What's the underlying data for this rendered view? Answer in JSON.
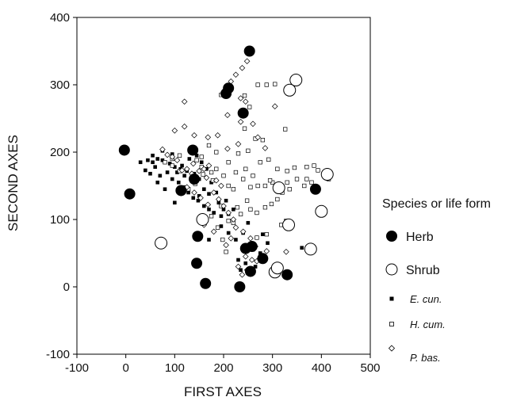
{
  "chart_data": {
    "type": "scatter",
    "title": "",
    "xlabel": "FIRST AXES",
    "ylabel": "SECOND AXES",
    "xlim": [
      -100,
      500
    ],
    "ylim": [
      -100,
      400
    ],
    "xticks": [
      "-100",
      "0",
      "100",
      "200",
      "300",
      "400",
      "500"
    ],
    "yticks": [
      "-100",
      "0",
      "100",
      "200",
      "300",
      "400"
    ],
    "xtick_values": [
      -100,
      0,
      100,
      200,
      300,
      400,
      500
    ],
    "ytick_values": [
      -100,
      0,
      100,
      200,
      300,
      400
    ],
    "grid": false,
    "legend_position": "right",
    "legend_title": "Species or life form",
    "series": [
      {
        "name": "Herb",
        "marker": "filled-circle-large",
        "points": [
          [
            253,
            350
          ],
          [
            210,
            295
          ],
          [
            205,
            287
          ],
          [
            240,
            258
          ],
          [
            -3,
            203
          ],
          [
            137,
            203
          ],
          [
            8,
            138
          ],
          [
            113,
            143
          ],
          [
            388,
            145
          ],
          [
            140,
            160
          ],
          [
            147,
            75
          ],
          [
            145,
            35
          ],
          [
            163,
            5
          ],
          [
            233,
            0
          ],
          [
            245,
            57
          ],
          [
            258,
            60
          ],
          [
            280,
            42
          ],
          [
            255,
            23
          ],
          [
            330,
            18
          ]
        ]
      },
      {
        "name": "Shrub",
        "marker": "open-circle-large",
        "points": [
          [
            348,
            307
          ],
          [
            335,
            292
          ],
          [
            313,
            147
          ],
          [
            412,
            167
          ],
          [
            157,
            100
          ],
          [
            72,
            65
          ],
          [
            333,
            92
          ],
          [
            400,
            112
          ],
          [
            378,
            56
          ],
          [
            305,
            22
          ],
          [
            310,
            28
          ]
        ]
      },
      {
        "name": "E. cun.",
        "marker": "filled-square-small",
        "points": [
          [
            30,
            185
          ],
          [
            45,
            188
          ],
          [
            55,
            185
          ],
          [
            65,
            190
          ],
          [
            75,
            188
          ],
          [
            90,
            183
          ],
          [
            100,
            178
          ],
          [
            105,
            170
          ],
          [
            112,
            175
          ],
          [
            120,
            165
          ],
          [
            125,
            172
          ],
          [
            135,
            158
          ],
          [
            140,
            168
          ],
          [
            150,
            160
          ],
          [
            40,
            173
          ],
          [
            50,
            168
          ],
          [
            60,
            178
          ],
          [
            70,
            165
          ],
          [
            85,
            170
          ],
          [
            95,
            160
          ],
          [
            108,
            155
          ],
          [
            118,
            148
          ],
          [
            128,
            140
          ],
          [
            138,
            132
          ],
          [
            148,
            128
          ],
          [
            160,
            120
          ],
          [
            170,
            115
          ],
          [
            180,
            110
          ],
          [
            190,
            125
          ],
          [
            200,
            115
          ],
          [
            210,
            108
          ],
          [
            220,
            115
          ],
          [
            170,
            138
          ],
          [
            160,
            145
          ],
          [
            185,
            140
          ],
          [
            175,
            155
          ],
          [
            165,
            175
          ],
          [
            155,
            185
          ],
          [
            145,
            195
          ],
          [
            130,
            190
          ],
          [
            115,
            180
          ],
          [
            55,
            195
          ],
          [
            75,
            202
          ],
          [
            95,
            197
          ],
          [
            65,
            155
          ],
          [
            80,
            145
          ],
          [
            100,
            125
          ],
          [
            195,
            90
          ],
          [
            210,
            80
          ],
          [
            225,
            70
          ],
          [
            240,
            80
          ],
          [
            250,
            95
          ],
          [
            260,
            55
          ],
          [
            275,
            50
          ],
          [
            290,
            65
          ],
          [
            230,
            40
          ],
          [
            245,
            35
          ],
          [
            265,
            30
          ],
          [
            280,
            78
          ],
          [
            360,
            58
          ],
          [
            235,
            25
          ],
          [
            170,
            70
          ],
          [
            205,
            128
          ],
          [
            195,
            105
          ],
          [
            150,
            135
          ]
        ]
      },
      {
        "name": "H. cum.",
        "marker": "open-square-small",
        "points": [
          [
            288,
            300
          ],
          [
            305,
            301
          ],
          [
            270,
            300
          ],
          [
            243,
            284
          ],
          [
            253,
            267
          ],
          [
            243,
            235
          ],
          [
            326,
            234
          ],
          [
            195,
            285
          ],
          [
            265,
            220
          ],
          [
            280,
            218
          ],
          [
            210,
            185
          ],
          [
            155,
            178
          ],
          [
            170,
            210
          ],
          [
            185,
            200
          ],
          [
            230,
            198
          ],
          [
            250,
            202
          ],
          [
            285,
            150
          ],
          [
            300,
            155
          ],
          [
            330,
            155
          ],
          [
            350,
            160
          ],
          [
            370,
            160
          ],
          [
            393,
            173
          ],
          [
            415,
            160
          ],
          [
            330,
            172
          ],
          [
            345,
            177
          ],
          [
            370,
            178
          ],
          [
            385,
            180
          ],
          [
            310,
            175
          ],
          [
            295,
            158
          ],
          [
            320,
            140
          ],
          [
            335,
            145
          ],
          [
            365,
            150
          ],
          [
            380,
            155
          ],
          [
            245,
            175
          ],
          [
            260,
            165
          ],
          [
            240,
            160
          ],
          [
            225,
            170
          ],
          [
            200,
            165
          ],
          [
            210,
            150
          ],
          [
            220,
            145
          ],
          [
            255,
            148
          ],
          [
            270,
            150
          ],
          [
            275,
            185
          ],
          [
            292,
            189
          ],
          [
            185,
            175
          ],
          [
            178,
            158
          ],
          [
            255,
            115
          ],
          [
            268,
            110
          ],
          [
            285,
            118
          ],
          [
            298,
            123
          ],
          [
            310,
            130
          ],
          [
            235,
            108
          ],
          [
            220,
            95
          ],
          [
            210,
            98
          ],
          [
            228,
            118
          ],
          [
            248,
            128
          ],
          [
            195,
            120
          ],
          [
            175,
            105
          ],
          [
            268,
            73
          ],
          [
            288,
            78
          ],
          [
            318,
            92
          ],
          [
            328,
            98
          ],
          [
            198,
            70
          ],
          [
            205,
            52
          ],
          [
            188,
            88
          ],
          [
            80,
            185
          ],
          [
            95,
            180
          ],
          [
            110,
            172
          ],
          [
            128,
            145
          ],
          [
            142,
            153
          ],
          [
            158,
            167
          ],
          [
            175,
            170
          ],
          [
            145,
            188
          ],
          [
            155,
            193
          ],
          [
            95,
            190
          ],
          [
            110,
            195
          ]
        ]
      },
      {
        "name": "P. bas.",
        "marker": "open-diamond-small",
        "points": [
          [
            248,
            335
          ],
          [
            238,
            325
          ],
          [
            225,
            315
          ],
          [
            215,
            305
          ],
          [
            200,
            285
          ],
          [
            305,
            268
          ],
          [
            245,
            275
          ],
          [
            235,
            280
          ],
          [
            208,
            255
          ],
          [
            235,
            245
          ],
          [
            260,
            242
          ],
          [
            100,
            232
          ],
          [
            120,
            238
          ],
          [
            140,
            225
          ],
          [
            168,
            222
          ],
          [
            188,
            225
          ],
          [
            208,
            205
          ],
          [
            230,
            212
          ],
          [
            270,
            222
          ],
          [
            285,
            206
          ],
          [
            160,
            175
          ],
          [
            170,
            180
          ],
          [
            138,
            183
          ],
          [
            115,
            173
          ],
          [
            75,
            204
          ],
          [
            85,
            196
          ],
          [
            95,
            193
          ],
          [
            105,
            188
          ],
          [
            125,
            175
          ],
          [
            135,
            168
          ],
          [
            150,
            172
          ],
          [
            165,
            162
          ],
          [
            185,
            158
          ],
          [
            195,
            150
          ],
          [
            180,
            140
          ],
          [
            190,
            130
          ],
          [
            200,
            120
          ],
          [
            210,
            110
          ],
          [
            220,
            100
          ],
          [
            225,
            88
          ],
          [
            240,
            82
          ],
          [
            255,
            72
          ],
          [
            265,
            60
          ],
          [
            245,
            45
          ],
          [
            230,
            30
          ],
          [
            238,
            18
          ],
          [
            248,
            25
          ],
          [
            258,
            40
          ],
          [
            205,
            62
          ],
          [
            215,
            72
          ],
          [
            180,
            82
          ],
          [
            160,
            92
          ],
          [
            268,
            38
          ],
          [
            125,
            148
          ],
          [
            140,
            140
          ],
          [
            153,
            132
          ],
          [
            168,
            122
          ],
          [
            288,
            53
          ],
          [
            328,
            52
          ],
          [
            120,
            275
          ]
        ]
      }
    ]
  }
}
